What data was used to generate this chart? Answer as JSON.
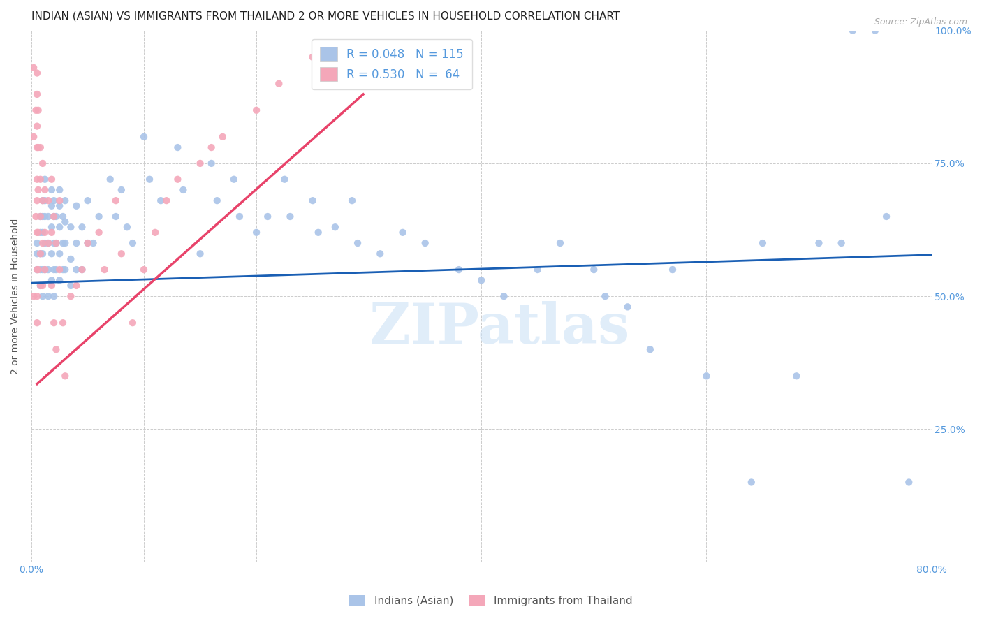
{
  "title": "INDIAN (ASIAN) VS IMMIGRANTS FROM THAILAND 2 OR MORE VEHICLES IN HOUSEHOLD CORRELATION CHART",
  "source": "Source: ZipAtlas.com",
  "ylabel": "2 or more Vehicles in Household",
  "x_min": 0.0,
  "x_max": 0.8,
  "y_min": 0.0,
  "y_max": 1.0,
  "x_ticks": [
    0.0,
    0.1,
    0.2,
    0.3,
    0.4,
    0.5,
    0.6,
    0.7,
    0.8
  ],
  "y_ticks": [
    0.0,
    0.25,
    0.5,
    0.75,
    1.0
  ],
  "watermark": "ZIPatlas",
  "blue_scatter_color": "#aac4e8",
  "pink_scatter_color": "#f4a7b9",
  "blue_line_color": "#1a5fb4",
  "pink_line_color": "#e8436a",
  "axis_color": "#5599dd",
  "grid_color": "#cccccc",
  "background_color": "#ffffff",
  "blue_points_x": [
    0.005,
    0.005,
    0.005,
    0.008,
    0.008,
    0.008,
    0.008,
    0.008,
    0.01,
    0.01,
    0.01,
    0.01,
    0.01,
    0.01,
    0.012,
    0.012,
    0.012,
    0.012,
    0.012,
    0.015,
    0.015,
    0.015,
    0.015,
    0.018,
    0.018,
    0.018,
    0.018,
    0.018,
    0.02,
    0.02,
    0.02,
    0.02,
    0.02,
    0.022,
    0.022,
    0.022,
    0.025,
    0.025,
    0.025,
    0.025,
    0.025,
    0.028,
    0.028,
    0.028,
    0.03,
    0.03,
    0.03,
    0.03,
    0.035,
    0.035,
    0.035,
    0.04,
    0.04,
    0.04,
    0.045,
    0.045,
    0.05,
    0.05,
    0.055,
    0.06,
    0.07,
    0.075,
    0.08,
    0.085,
    0.09,
    0.1,
    0.105,
    0.115,
    0.13,
    0.135,
    0.15,
    0.16,
    0.165,
    0.18,
    0.185,
    0.2,
    0.21,
    0.225,
    0.23,
    0.25,
    0.255,
    0.27,
    0.285,
    0.29,
    0.31,
    0.33,
    0.35,
    0.38,
    0.4,
    0.42,
    0.45,
    0.47,
    0.5,
    0.51,
    0.53,
    0.55,
    0.57,
    0.6,
    0.64,
    0.65,
    0.68,
    0.7,
    0.72,
    0.73,
    0.75,
    0.76,
    0.78
  ],
  "blue_points_y": [
    0.6,
    0.58,
    0.55,
    0.65,
    0.62,
    0.58,
    0.55,
    0.52,
    0.68,
    0.65,
    0.62,
    0.58,
    0.55,
    0.5,
    0.72,
    0.68,
    0.65,
    0.6,
    0.55,
    0.65,
    0.6,
    0.55,
    0.5,
    0.7,
    0.67,
    0.63,
    0.58,
    0.53,
    0.68,
    0.65,
    0.6,
    0.55,
    0.5,
    0.65,
    0.6,
    0.55,
    0.7,
    0.67,
    0.63,
    0.58,
    0.53,
    0.65,
    0.6,
    0.55,
    0.68,
    0.64,
    0.6,
    0.55,
    0.63,
    0.57,
    0.52,
    0.67,
    0.6,
    0.55,
    0.63,
    0.55,
    0.68,
    0.6,
    0.6,
    0.65,
    0.72,
    0.65,
    0.7,
    0.63,
    0.6,
    0.8,
    0.72,
    0.68,
    0.78,
    0.7,
    0.58,
    0.75,
    0.68,
    0.72,
    0.65,
    0.62,
    0.65,
    0.72,
    0.65,
    0.68,
    0.62,
    0.63,
    0.68,
    0.6,
    0.58,
    0.62,
    0.6,
    0.55,
    0.53,
    0.5,
    0.55,
    0.6,
    0.55,
    0.5,
    0.48,
    0.4,
    0.55,
    0.35,
    0.15,
    0.6,
    0.35,
    0.6,
    0.6,
    1.0,
    1.0,
    0.65,
    0.15
  ],
  "pink_points_x": [
    0.002,
    0.002,
    0.002,
    0.004,
    0.004,
    0.005,
    0.005,
    0.005,
    0.005,
    0.005,
    0.005,
    0.005,
    0.005,
    0.005,
    0.005,
    0.006,
    0.006,
    0.006,
    0.006,
    0.006,
    0.008,
    0.008,
    0.008,
    0.008,
    0.008,
    0.01,
    0.01,
    0.01,
    0.01,
    0.012,
    0.012,
    0.012,
    0.015,
    0.015,
    0.018,
    0.018,
    0.018,
    0.02,
    0.02,
    0.022,
    0.022,
    0.025,
    0.025,
    0.028,
    0.03,
    0.035,
    0.04,
    0.045,
    0.05,
    0.06,
    0.065,
    0.075,
    0.08,
    0.09,
    0.1,
    0.11,
    0.12,
    0.13,
    0.15,
    0.16,
    0.17,
    0.2,
    0.22,
    0.25
  ],
  "pink_points_y": [
    0.93,
    0.8,
    0.5,
    0.85,
    0.65,
    0.92,
    0.88,
    0.82,
    0.78,
    0.72,
    0.68,
    0.62,
    0.55,
    0.5,
    0.45,
    0.85,
    0.78,
    0.7,
    0.62,
    0.55,
    0.78,
    0.72,
    0.65,
    0.58,
    0.52,
    0.75,
    0.68,
    0.6,
    0.52,
    0.7,
    0.62,
    0.55,
    0.68,
    0.6,
    0.72,
    0.62,
    0.52,
    0.65,
    0.45,
    0.6,
    0.4,
    0.68,
    0.55,
    0.45,
    0.35,
    0.5,
    0.52,
    0.55,
    0.6,
    0.62,
    0.55,
    0.68,
    0.58,
    0.45,
    0.55,
    0.62,
    0.68,
    0.72,
    0.75,
    0.78,
    0.8,
    0.85,
    0.9,
    0.95
  ],
  "blue_line_x": [
    0.0,
    0.8
  ],
  "blue_line_y": [
    0.525,
    0.578
  ],
  "pink_line_x": [
    0.005,
    0.295
  ],
  "pink_line_y": [
    0.335,
    0.88
  ],
  "title_fontsize": 11,
  "axis_label_fontsize": 10,
  "tick_fontsize": 10,
  "legend_fontsize": 12,
  "scatter_size": 55
}
